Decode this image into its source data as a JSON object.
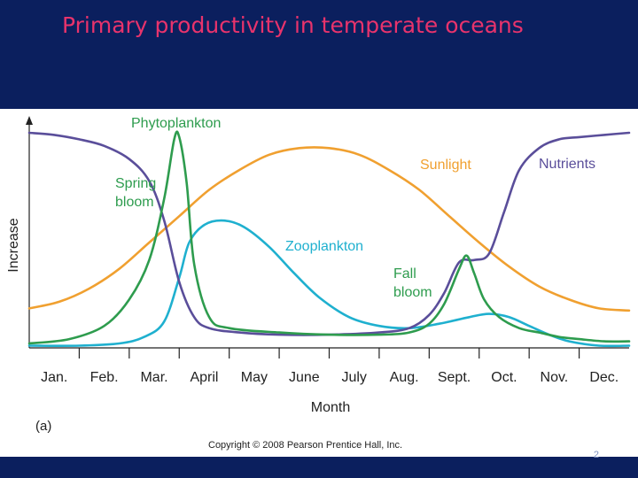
{
  "slide": {
    "title": "Primary productivity in temperate oceans",
    "copyright": "Copyright © 2008 Pearson Prentice Hall, Inc.",
    "slide_number": "2"
  },
  "chart_data": {
    "type": "line",
    "panel_label": "(a)",
    "xlabel": "Month",
    "ylabel": "Increase",
    "categories": [
      "Jan.",
      "Feb.",
      "Mar.",
      "April",
      "May",
      "June",
      "July",
      "Aug.",
      "Sept.",
      "Oct.",
      "Nov.",
      "Dec."
    ],
    "xlim": [
      0,
      12
    ],
    "ylim": [
      0,
      100
    ],
    "grid": false,
    "series": [
      {
        "name": "Sunlight",
        "color": "#f0a030",
        "x": [
          0,
          0.6,
          1.2,
          1.8,
          2.4,
          3.0,
          3.6,
          4.2,
          4.8,
          5.4,
          6.0,
          6.6,
          7.2,
          7.8,
          8.4,
          9.0,
          9.6,
          10.2,
          10.8,
          11.4,
          12
        ],
        "values": [
          18,
          21,
          27,
          36,
          48,
          60,
          72,
          81,
          88,
          91,
          91,
          88,
          81,
          72,
          60,
          48,
          37,
          28,
          22,
          18,
          17
        ]
      },
      {
        "name": "Nutrients",
        "color": "#5a4e9a",
        "x": [
          0,
          0.5,
          1.0,
          1.5,
          2.0,
          2.4,
          2.7,
          3.0,
          3.3,
          3.6,
          4.2,
          5.0,
          6.0,
          7.0,
          7.6,
          8.0,
          8.3,
          8.6,
          8.9,
          9.2,
          9.5,
          9.8,
          10.2,
          10.6,
          11.0,
          11.5,
          12
        ],
        "values": [
          98,
          97,
          95,
          92,
          86,
          76,
          58,
          30,
          14,
          9,
          7,
          6,
          6,
          7,
          9,
          15,
          25,
          39,
          40,
          43,
          62,
          81,
          91,
          95,
          96,
          97,
          98
        ]
      },
      {
        "name": "Phytoplankton",
        "color": "#2e9c4e",
        "x": [
          0,
          0.8,
          1.5,
          2.0,
          2.4,
          2.7,
          2.9,
          3.0,
          3.15,
          3.3,
          3.6,
          4.0,
          5.0,
          6.0,
          7.0,
          7.6,
          8.0,
          8.3,
          8.6,
          8.75,
          8.9,
          9.1,
          9.4,
          9.8,
          10.2,
          10.6,
          11.0,
          11.5,
          12
        ],
        "values": [
          2,
          4,
          10,
          22,
          40,
          68,
          95,
          96,
          75,
          38,
          14,
          9,
          7,
          6,
          6,
          7,
          11,
          20,
          36,
          42,
          34,
          22,
          14,
          9,
          7,
          5,
          4,
          3,
          3
        ]
      },
      {
        "name": "Zooplankton",
        "color": "#1fb0cf",
        "x": [
          0,
          1.0,
          1.8,
          2.3,
          2.7,
          3.0,
          3.2,
          3.5,
          3.9,
          4.3,
          4.8,
          5.3,
          5.8,
          6.4,
          7.0,
          7.6,
          8.2,
          8.8,
          9.2,
          9.6,
          10.0,
          10.4,
          10.8,
          11.4,
          12
        ],
        "values": [
          1,
          1,
          2,
          5,
          12,
          32,
          48,
          56,
          58,
          55,
          46,
          34,
          23,
          14,
          10,
          9,
          11,
          14,
          15.5,
          14,
          10,
          6,
          3,
          1,
          1
        ]
      }
    ],
    "annotations": [
      {
        "text": "Phytoplankton",
        "near": "top of spring peak"
      },
      {
        "text": "Sunlight",
        "near": "right of summer maximum"
      },
      {
        "text": "Nutrients",
        "near": "top-right"
      },
      {
        "text": "Spring",
        "near": "left of spring peak"
      },
      {
        "text": "bloom",
        "near": "left of spring peak"
      },
      {
        "text": "Zooplankton",
        "near": "center"
      },
      {
        "text": "Fall",
        "near": "below fall peak"
      },
      {
        "text": "bloom",
        "near": "below fall peak"
      }
    ],
    "legend": "none"
  }
}
